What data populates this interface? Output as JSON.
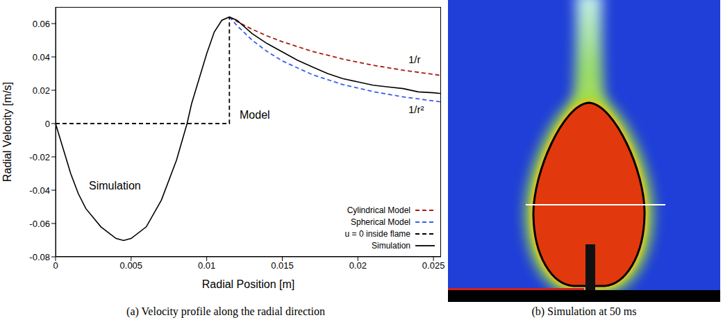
{
  "chart_data": {
    "type": "line",
    "caption": "(a) Velocity profile along the radial direction",
    "xlabel": "Radial Position [m]",
    "ylabel": "Radial Velocity [m/s]",
    "xlim": [
      0,
      0.0255
    ],
    "xticks": [
      0,
      0.005,
      0.01,
      0.015,
      0.02,
      0.025
    ],
    "ylim": [
      -0.08,
      0.07
    ],
    "yticks": [
      -0.08,
      -0.06,
      -0.04,
      -0.02,
      0,
      0.02,
      0.04,
      0.06
    ],
    "grid": false,
    "legend": "lower right",
    "annotations": [
      "1/r",
      "1/r²",
      "Model",
      "Simulation"
    ],
    "series": [
      {
        "name": "Cylindrical Model",
        "color": "#a61c0e",
        "line_style": "dashed",
        "x": [
          0.0115,
          0.012,
          0.013,
          0.014,
          0.015,
          0.017,
          0.019,
          0.021,
          0.023,
          0.0255
        ],
        "values": [
          0.064,
          0.0613,
          0.0566,
          0.0526,
          0.0491,
          0.0433,
          0.0387,
          0.035,
          0.032,
          0.0289
        ]
      },
      {
        "name": "Spherical Model",
        "color": "#3a5fe6",
        "line_style": "dashed",
        "x": [
          0.0115,
          0.012,
          0.013,
          0.014,
          0.015,
          0.017,
          0.019,
          0.021,
          0.023,
          0.0255
        ],
        "values": [
          0.064,
          0.0588,
          0.0501,
          0.0432,
          0.0376,
          0.0293,
          0.0234,
          0.0192,
          0.016,
          0.013
        ]
      },
      {
        "name": "u = 0 inside flame",
        "color": "#000000",
        "line_style": "dashed",
        "x": [
          0,
          0.0115,
          0.0115
        ],
        "values": [
          0,
          0,
          0.064
        ]
      },
      {
        "name": "Simulation",
        "color": "#000000",
        "line_style": "solid",
        "x": [
          0,
          0.0005,
          0.001,
          0.0015,
          0.002,
          0.003,
          0.004,
          0.0045,
          0.005,
          0.006,
          0.007,
          0.008,
          0.0087,
          0.009,
          0.01,
          0.0105,
          0.011,
          0.0115,
          0.012,
          0.013,
          0.014,
          0.015,
          0.016,
          0.017,
          0.018,
          0.019,
          0.02,
          0.021,
          0.022,
          0.023,
          0.024,
          0.025,
          0.0255
        ],
        "values": [
          0,
          -0.015,
          -0.03,
          -0.042,
          -0.051,
          -0.062,
          -0.069,
          -0.0702,
          -0.069,
          -0.062,
          -0.046,
          -0.022,
          0,
          0.012,
          0.042,
          0.055,
          0.062,
          0.064,
          0.062,
          0.054,
          0.048,
          0.043,
          0.038,
          0.034,
          0.03,
          0.027,
          0.025,
          0.023,
          0.022,
          0.021,
          0.019,
          0.0185,
          0.018
        ]
      }
    ]
  },
  "panel_b": {
    "caption": "(b) Simulation at 50 ms"
  }
}
